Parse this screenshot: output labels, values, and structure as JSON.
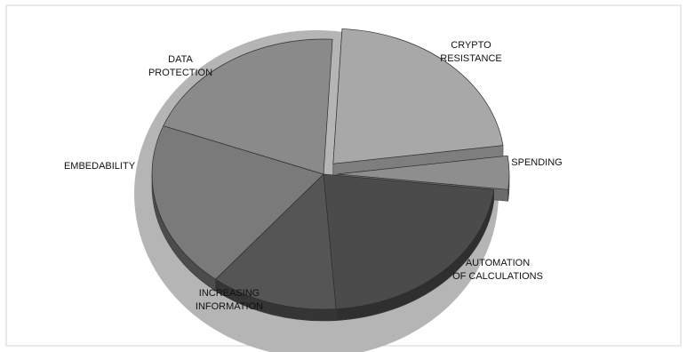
{
  "chart_data": {
    "type": "pie",
    "style": "3d-exploded",
    "title": "",
    "slices": [
      {
        "label": "CRYPTO RESISTANCE",
        "value": 22,
        "color": "#a8a8a8",
        "exploded": true
      },
      {
        "label": "SPENDING",
        "value": 4,
        "color": "#8e8e8e",
        "exploded": true
      },
      {
        "label": "AUTOMATION OF CALCULATIONS",
        "value": 22,
        "color": "#4b4b4b",
        "exploded": false
      },
      {
        "label": "INCREASING INFORMATION",
        "value": 12,
        "color": "#555555",
        "exploded": false
      },
      {
        "label": "EMBEDABILITY",
        "value": 20,
        "color": "#7a7a7a",
        "exploded": false
      },
      {
        "label": "DATA PROTECTION",
        "value": 20,
        "color": "#8a8a8a",
        "exploded": false
      }
    ],
    "label_lines": [
      [
        "CRYPTO",
        "RESISTANCE"
      ],
      [
        "SPENDING"
      ],
      [
        "AUTOMATION",
        "OF CALCULATIONS"
      ],
      [
        "INCREASING",
        "INFORMATION"
      ],
      [
        "EMBEDABILITY"
      ],
      [
        "DATA",
        "PROTECTION"
      ]
    ],
    "shadow_color": "#b5b5b5",
    "border_color": "#d6d6d6"
  }
}
